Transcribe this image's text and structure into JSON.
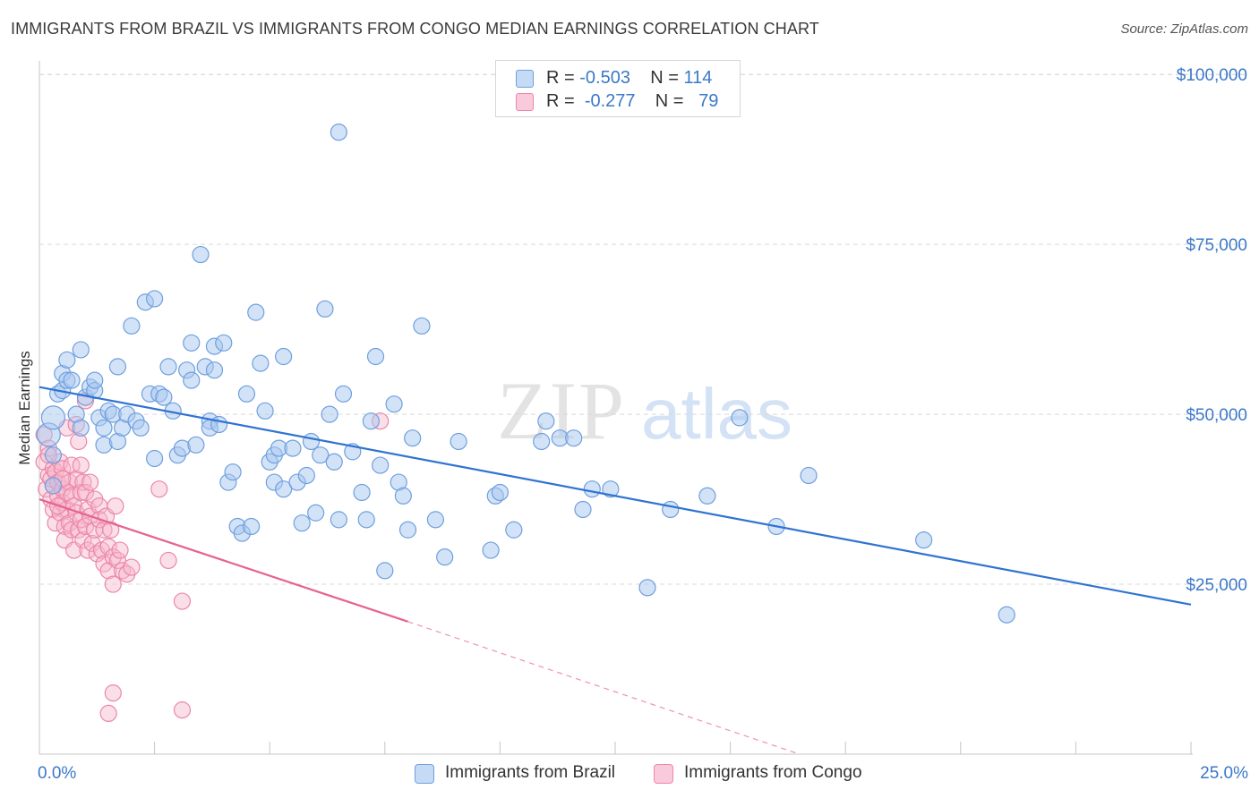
{
  "header": {
    "title": "IMMIGRANTS FROM BRAZIL VS IMMIGRANTS FROM CONGO MEDIAN EARNINGS CORRELATION CHART",
    "source": "Source: ZipAtlas.com"
  },
  "watermark": {
    "zip": "ZIP",
    "atlas": "atlas"
  },
  "legend": {
    "rows": [
      {
        "r_label": "R = ",
        "r_value": "-0.503",
        "n_label": "N = ",
        "n_value": "114"
      },
      {
        "r_label": "R = ",
        "r_value": "-0.277",
        "n_label": "N = ",
        "n_value": "79"
      }
    ]
  },
  "bottom_legend": {
    "brazil": "Immigrants from Brazil",
    "congo": "Immigrants from Congo"
  },
  "colors": {
    "brazil_fill": "#a8c8f0",
    "brazil_stroke": "#6f9fde",
    "brazil_line": "#2f73d2",
    "congo_fill": "#f6b7cb",
    "congo_stroke": "#ec86a8",
    "congo_line": "#e5648f",
    "tick_text": "#3b78c9",
    "grid": "#d9d9d9"
  },
  "chart_data": {
    "type": "scatter",
    "title": "IMMIGRANTS FROM BRAZIL VS IMMIGRANTS FROM CONGO MEDIAN EARNINGS CORRELATION CHART",
    "xlabel": "",
    "ylabel": "Median Earnings",
    "xlim": [
      0,
      25
    ],
    "ylim": [
      0,
      102000
    ],
    "x_tick_labels": [
      "0.0%",
      "25.0%"
    ],
    "y_ticks": [
      25000,
      50000,
      75000,
      100000
    ],
    "y_tick_labels": [
      "$25,000",
      "$50,000",
      "$75,000",
      "$100,000"
    ],
    "grid": "horizontal dashed",
    "legend_position": "top-center",
    "series": [
      {
        "name": "Immigrants from Brazil",
        "trend": {
          "x": [
            0,
            25
          ],
          "y": [
            54000,
            22000
          ]
        },
        "points": [
          [
            0.2,
            47000
          ],
          [
            0.3,
            49500
          ],
          [
            0.3,
            44000
          ],
          [
            0.4,
            53000
          ],
          [
            0.5,
            53500
          ],
          [
            0.5,
            56000
          ],
          [
            0.6,
            55000
          ],
          [
            0.6,
            58000
          ],
          [
            0.7,
            55000
          ],
          [
            0.8,
            50000
          ],
          [
            0.9,
            48000
          ],
          [
            0.9,
            59500
          ],
          [
            1.0,
            52500
          ],
          [
            1.1,
            54000
          ],
          [
            1.2,
            53500
          ],
          [
            1.2,
            55000
          ],
          [
            1.3,
            49500
          ],
          [
            1.4,
            48000
          ],
          [
            1.4,
            45500
          ],
          [
            1.5,
            50500
          ],
          [
            1.6,
            50000
          ],
          [
            1.7,
            57000
          ],
          [
            1.7,
            46000
          ],
          [
            1.8,
            48000
          ],
          [
            1.9,
            50000
          ],
          [
            2.0,
            63000
          ],
          [
            2.1,
            49000
          ],
          [
            2.2,
            48000
          ],
          [
            2.3,
            66500
          ],
          [
            2.4,
            53000
          ],
          [
            2.5,
            67000
          ],
          [
            2.5,
            43500
          ],
          [
            2.6,
            53000
          ],
          [
            2.7,
            52500
          ],
          [
            2.8,
            57000
          ],
          [
            2.9,
            50500
          ],
          [
            3.0,
            44000
          ],
          [
            3.1,
            45000
          ],
          [
            3.2,
            56500
          ],
          [
            3.3,
            60500
          ],
          [
            3.3,
            55000
          ],
          [
            3.4,
            45500
          ],
          [
            3.5,
            73500
          ],
          [
            3.6,
            57000
          ],
          [
            3.7,
            49000
          ],
          [
            3.7,
            48000
          ],
          [
            3.8,
            56500
          ],
          [
            3.8,
            60000
          ],
          [
            3.9,
            48500
          ],
          [
            4.0,
            60500
          ],
          [
            4.1,
            40000
          ],
          [
            4.2,
            41500
          ],
          [
            4.3,
            33500
          ],
          [
            4.4,
            32500
          ],
          [
            4.5,
            53000
          ],
          [
            4.6,
            33500
          ],
          [
            4.7,
            65000
          ],
          [
            4.8,
            57500
          ],
          [
            4.9,
            50500
          ],
          [
            5.0,
            43000
          ],
          [
            5.1,
            40000
          ],
          [
            5.1,
            44000
          ],
          [
            5.2,
            45000
          ],
          [
            5.3,
            58500
          ],
          [
            5.3,
            39000
          ],
          [
            5.5,
            45000
          ],
          [
            5.6,
            40000
          ],
          [
            5.7,
            34000
          ],
          [
            5.8,
            41000
          ],
          [
            5.9,
            46000
          ],
          [
            6.0,
            35500
          ],
          [
            6.1,
            44000
          ],
          [
            6.2,
            65500
          ],
          [
            6.3,
            50000
          ],
          [
            6.4,
            43000
          ],
          [
            6.5,
            34500
          ],
          [
            6.6,
            53000
          ],
          [
            6.8,
            44500
          ],
          [
            7.0,
            38500
          ],
          [
            7.1,
            34500
          ],
          [
            7.2,
            49000
          ],
          [
            7.3,
            58500
          ],
          [
            7.4,
            42500
          ],
          [
            7.5,
            27000
          ],
          [
            7.7,
            51500
          ],
          [
            7.8,
            40000
          ],
          [
            7.9,
            38000
          ],
          [
            8.0,
            33000
          ],
          [
            8.1,
            46500
          ],
          [
            8.3,
            63000
          ],
          [
            8.6,
            34500
          ],
          [
            8.8,
            29000
          ],
          [
            9.1,
            46000
          ],
          [
            9.8,
            30000
          ],
          [
            9.9,
            38000
          ],
          [
            10.0,
            38500
          ],
          [
            10.3,
            33000
          ],
          [
            10.9,
            46000
          ],
          [
            11.0,
            49000
          ],
          [
            11.3,
            46500
          ],
          [
            11.6,
            46500
          ],
          [
            11.8,
            36000
          ],
          [
            12.0,
            39000
          ],
          [
            12.4,
            39000
          ],
          [
            13.2,
            24500
          ],
          [
            13.7,
            36000
          ],
          [
            14.5,
            38000
          ],
          [
            15.2,
            49500
          ],
          [
            16.0,
            33500
          ],
          [
            16.7,
            41000
          ],
          [
            19.2,
            31500
          ],
          [
            21.0,
            20500
          ],
          [
            6.5,
            91500
          ],
          [
            0.3,
            39500
          ]
        ]
      },
      {
        "name": "Immigrants from Congo",
        "trend": {
          "x": [
            0,
            8.0
          ],
          "y": [
            37500,
            19500
          ]
        },
        "trend_ext": {
          "x": [
            8.0,
            16.5
          ],
          "y": [
            19500,
            0
          ]
        },
        "points": [
          [
            0.1,
            47000
          ],
          [
            0.1,
            43000
          ],
          [
            0.15,
            39000
          ],
          [
            0.2,
            45000
          ],
          [
            0.2,
            41000
          ],
          [
            0.25,
            40500
          ],
          [
            0.25,
            37500
          ],
          [
            0.3,
            42000
          ],
          [
            0.3,
            39500
          ],
          [
            0.3,
            36000
          ],
          [
            0.35,
            34000
          ],
          [
            0.35,
            41500
          ],
          [
            0.4,
            40000
          ],
          [
            0.4,
            38000
          ],
          [
            0.45,
            43000
          ],
          [
            0.45,
            35500
          ],
          [
            0.5,
            42000
          ],
          [
            0.5,
            39000
          ],
          [
            0.5,
            37000
          ],
          [
            0.55,
            33500
          ],
          [
            0.55,
            31500
          ],
          [
            0.6,
            48000
          ],
          [
            0.6,
            38500
          ],
          [
            0.6,
            36000
          ],
          [
            0.65,
            40000
          ],
          [
            0.65,
            34000
          ],
          [
            0.7,
            42500
          ],
          [
            0.7,
            38000
          ],
          [
            0.7,
            33000
          ],
          [
            0.75,
            30000
          ],
          [
            0.75,
            36500
          ],
          [
            0.8,
            48500
          ],
          [
            0.8,
            40500
          ],
          [
            0.8,
            35500
          ],
          [
            0.85,
            46000
          ],
          [
            0.85,
            33000
          ],
          [
            0.9,
            38500
          ],
          [
            0.9,
            34500
          ],
          [
            0.95,
            40000
          ],
          [
            0.95,
            31500
          ],
          [
            1.0,
            52000
          ],
          [
            1.0,
            38500
          ],
          [
            1.0,
            33500
          ],
          [
            1.05,
            36000
          ],
          [
            1.05,
            30000
          ],
          [
            1.1,
            40000
          ],
          [
            1.1,
            35000
          ],
          [
            1.15,
            31000
          ],
          [
            1.2,
            37500
          ],
          [
            1.2,
            33000
          ],
          [
            1.25,
            29500
          ],
          [
            1.3,
            36500
          ],
          [
            1.3,
            34500
          ],
          [
            1.35,
            30000
          ],
          [
            1.4,
            33000
          ],
          [
            1.4,
            28000
          ],
          [
            1.45,
            35000
          ],
          [
            1.5,
            27000
          ],
          [
            1.5,
            30500
          ],
          [
            1.55,
            33000
          ],
          [
            1.6,
            29000
          ],
          [
            1.6,
            25000
          ],
          [
            1.65,
            36500
          ],
          [
            1.7,
            28500
          ],
          [
            1.75,
            30000
          ],
          [
            1.8,
            27000
          ],
          [
            1.9,
            26500
          ],
          [
            2.0,
            27500
          ],
          [
            2.6,
            39000
          ],
          [
            2.8,
            28500
          ],
          [
            3.1,
            22500
          ],
          [
            1.6,
            9000
          ],
          [
            1.5,
            6000
          ],
          [
            3.1,
            6500
          ],
          [
            7.4,
            49000
          ],
          [
            0.2,
            44000
          ],
          [
            0.4,
            36500
          ],
          [
            0.5,
            40500
          ],
          [
            0.9,
            42500
          ]
        ]
      }
    ]
  }
}
